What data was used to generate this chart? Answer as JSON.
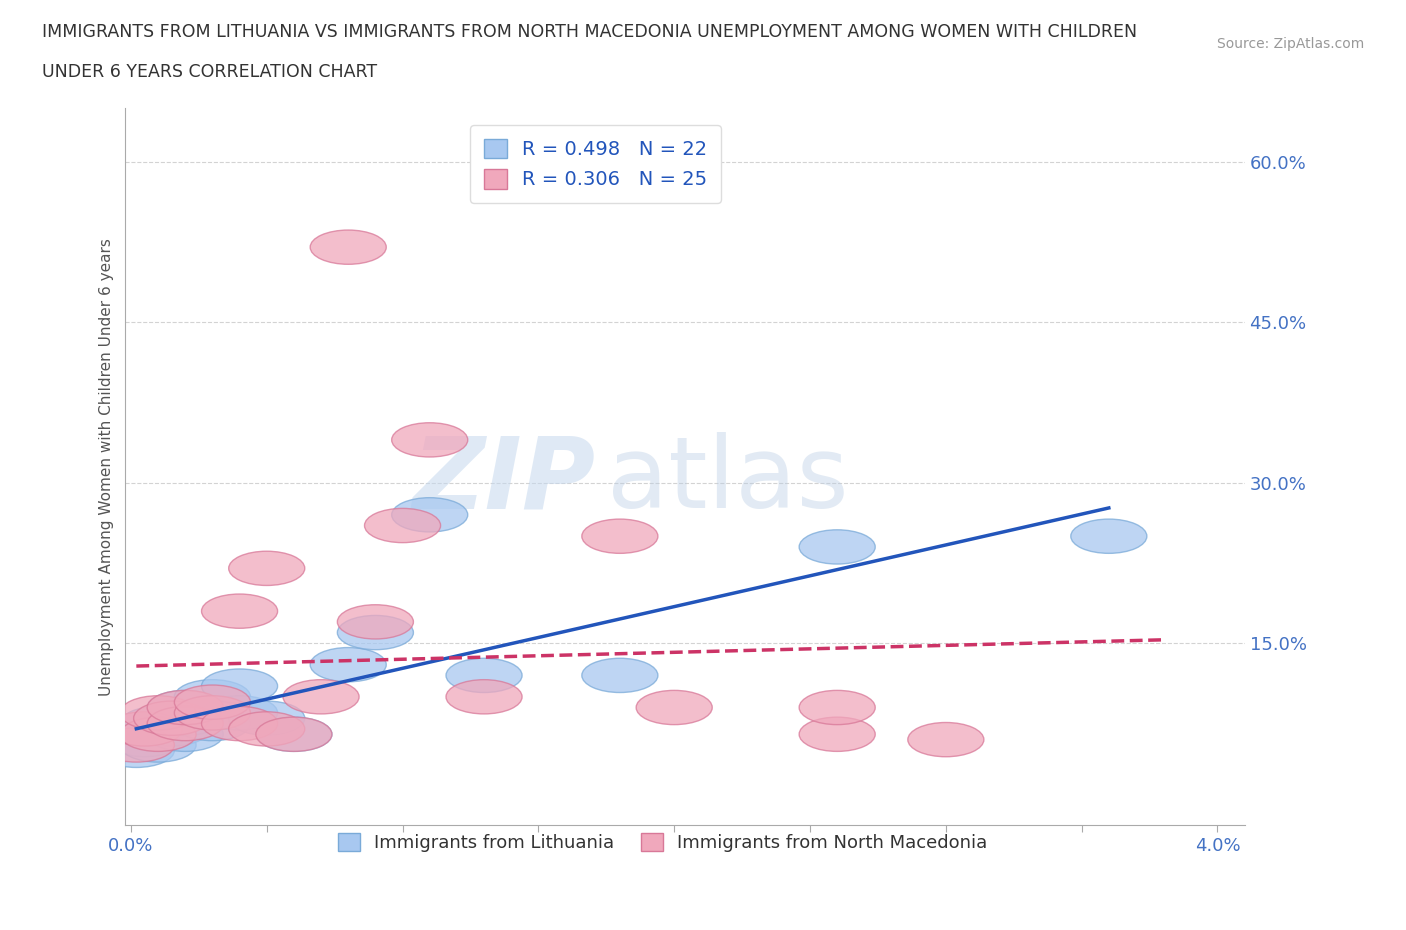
{
  "title_line1": "IMMIGRANTS FROM LITHUANIA VS IMMIGRANTS FROM NORTH MACEDONIA UNEMPLOYMENT AMONG WOMEN WITH CHILDREN",
  "title_line2": "UNDER 6 YEARS CORRELATION CHART",
  "source": "Source: ZipAtlas.com",
  "ylabel": "Unemployment Among Women with Children Under 6 years",
  "xlim": [
    -0.0002,
    0.041
  ],
  "ylim": [
    -0.02,
    0.65
  ],
  "xticks": [
    0.0,
    0.005,
    0.01,
    0.015,
    0.02,
    0.025,
    0.03,
    0.035,
    0.04
  ],
  "xticklabels": [
    "0.0%",
    "",
    "",
    "",
    "",
    "",
    "",
    "",
    "4.0%"
  ],
  "ytick_positions": [
    0.0,
    0.15,
    0.3,
    0.45,
    0.6
  ],
  "ytick_labels": [
    "",
    "15.0%",
    "30.0%",
    "45.0%",
    "60.0%"
  ],
  "grid_color": "#c8c8c8",
  "background_color": "#ffffff",
  "lithuania_color": "#a8c8f0",
  "lithuania_edge": "#7aaad8",
  "north_macedonia_color": "#f0a8bc",
  "north_macedonia_edge": "#d87898",
  "lithuania_R": 0.498,
  "lithuania_N": 22,
  "north_macedonia_R": 0.306,
  "north_macedonia_N": 25,
  "lithuania_line_color": "#2255bb",
  "north_macedonia_line_color": "#cc3366",
  "watermark_zip": "ZIP",
  "watermark_atlas": "atlas",
  "lithuania_x": [
    0.0002,
    0.0005,
    0.001,
    0.001,
    0.0015,
    0.002,
    0.002,
    0.002,
    0.003,
    0.003,
    0.003,
    0.004,
    0.004,
    0.005,
    0.006,
    0.008,
    0.009,
    0.011,
    0.013,
    0.018,
    0.026,
    0.036
  ],
  "lithuania_y": [
    0.05,
    0.06,
    0.055,
    0.075,
    0.07,
    0.065,
    0.08,
    0.09,
    0.075,
    0.085,
    0.1,
    0.085,
    0.11,
    0.08,
    0.065,
    0.13,
    0.16,
    0.27,
    0.12,
    0.12,
    0.24,
    0.25
  ],
  "north_macedonia_x": [
    0.0002,
    0.0005,
    0.001,
    0.001,
    0.0015,
    0.002,
    0.002,
    0.003,
    0.003,
    0.004,
    0.004,
    0.005,
    0.005,
    0.006,
    0.007,
    0.008,
    0.009,
    0.01,
    0.011,
    0.013,
    0.018,
    0.02,
    0.026,
    0.026,
    0.03
  ],
  "north_macedonia_y": [
    0.055,
    0.07,
    0.065,
    0.085,
    0.08,
    0.075,
    0.09,
    0.085,
    0.095,
    0.075,
    0.18,
    0.07,
    0.22,
    0.065,
    0.1,
    0.52,
    0.17,
    0.26,
    0.34,
    0.1,
    0.25,
    0.09,
    0.065,
    0.09,
    0.06
  ],
  "legend_R_color": "#2255bb",
  "legend_N_color": "#2255bb"
}
